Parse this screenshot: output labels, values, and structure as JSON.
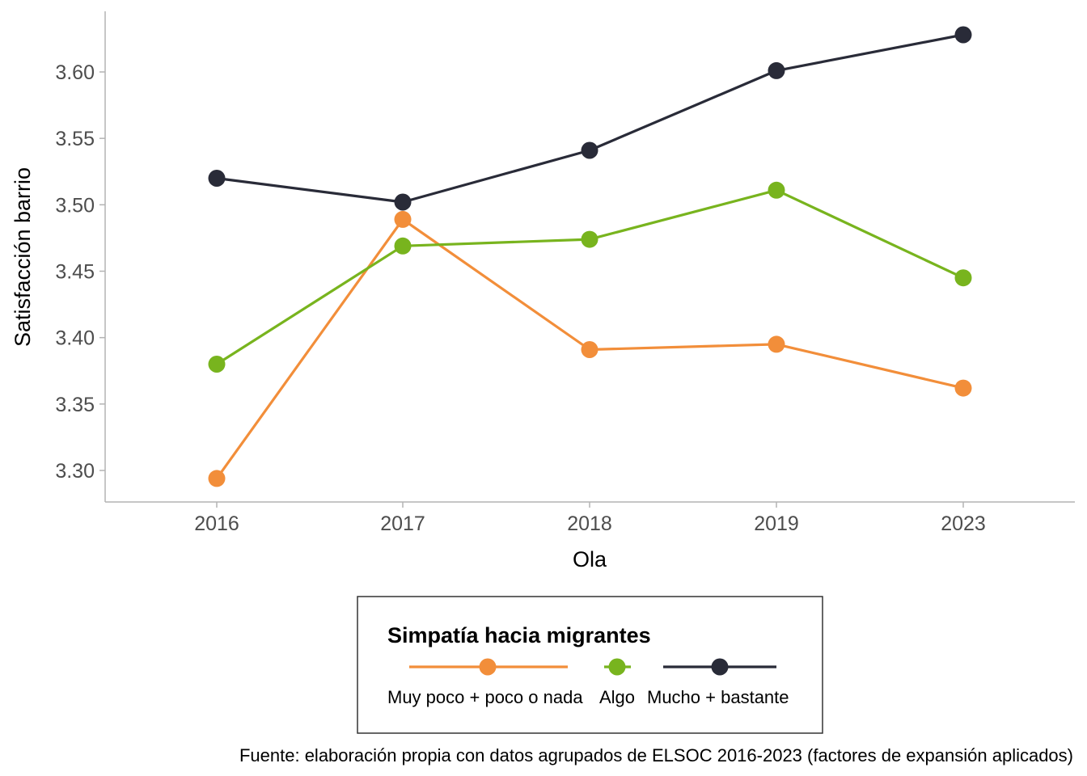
{
  "chart_data": {
    "type": "line",
    "xlabel": "Ola",
    "ylabel": "Satisfacción barrio",
    "categories": [
      "2016",
      "2017",
      "2018",
      "2019",
      "2023"
    ],
    "y_ticks": [
      "3.30",
      "3.35",
      "3.40",
      "3.45",
      "3.50",
      "3.55",
      "3.60"
    ],
    "ylim": [
      3.278,
      3.648
    ],
    "grid": false,
    "legend": {
      "title": "Simpatía hacia migrantes",
      "position": "bottom"
    },
    "series": [
      {
        "name": "Muy poco + poco o nada",
        "color": "#F28E3A",
        "values": [
          3.294,
          3.489,
          3.391,
          3.395,
          3.362
        ]
      },
      {
        "name": "Algo",
        "color": "#78B41E",
        "values": [
          3.38,
          3.469,
          3.474,
          3.511,
          3.445
        ]
      },
      {
        "name": "Mucho + bastante",
        "color": "#292B38",
        "values": [
          3.52,
          3.502,
          3.541,
          3.601,
          3.628
        ]
      }
    ],
    "caption": "Fuente: elaboración propia con datos agrupados de ELSOC 2016-2023 (factores de expansión aplicados)"
  }
}
